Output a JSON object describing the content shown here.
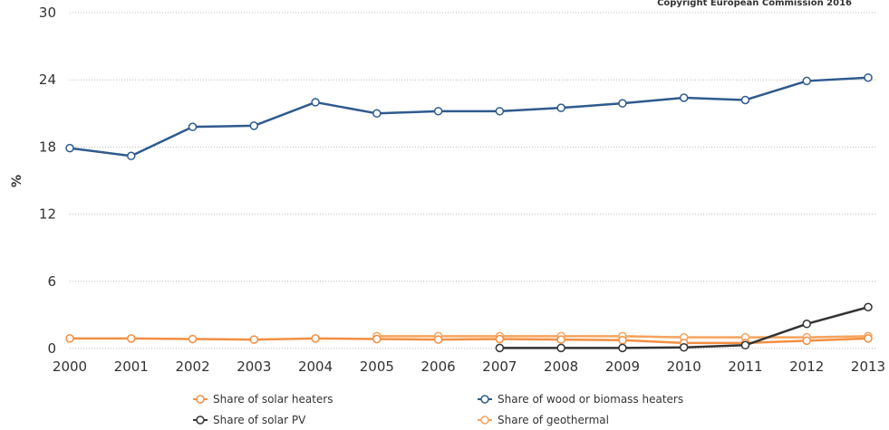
{
  "chart_data": {
    "type": "line",
    "title": "",
    "copyright": "Copyright European Commission 2016",
    "xlabel": "",
    "ylabel": "%",
    "ylim": [
      0,
      30
    ],
    "yticks": [
      "0",
      "6",
      "12",
      "18",
      "24",
      "30"
    ],
    "categories": [
      "2000",
      "2001",
      "2002",
      "2003",
      "2004",
      "2005",
      "2006",
      "2007",
      "2008",
      "2009",
      "2010",
      "2011",
      "2012",
      "2013"
    ],
    "grid": true,
    "legend_position": "bottom",
    "series": [
      {
        "name": "Share of solar heaters",
        "color": "#f28f43",
        "values": [
          0.9,
          0.9,
          0.85,
          0.8,
          0.9,
          0.85,
          0.8,
          0.85,
          0.8,
          0.75,
          0.5,
          0.5,
          0.7,
          0.9
        ]
      },
      {
        "name": "Share of wood or biomass heaters",
        "color": "#2f5a8e",
        "values": [
          17.9,
          17.2,
          19.8,
          19.9,
          22.0,
          21.0,
          21.2,
          21.2,
          21.5,
          21.9,
          22.4,
          22.2,
          23.9,
          24.2
        ]
      },
      {
        "name": "Share of solar PV",
        "color": "#333333",
        "values": [
          null,
          null,
          null,
          null,
          null,
          null,
          null,
          0.05,
          0.05,
          0.05,
          0.1,
          0.3,
          2.2,
          3.7
        ]
      },
      {
        "name": "Share of geothermal",
        "color": "#f7a35c",
        "values": [
          null,
          null,
          null,
          null,
          null,
          1.1,
          1.1,
          1.1,
          1.1,
          1.1,
          1.0,
          1.0,
          1.0,
          1.1
        ]
      }
    ]
  }
}
